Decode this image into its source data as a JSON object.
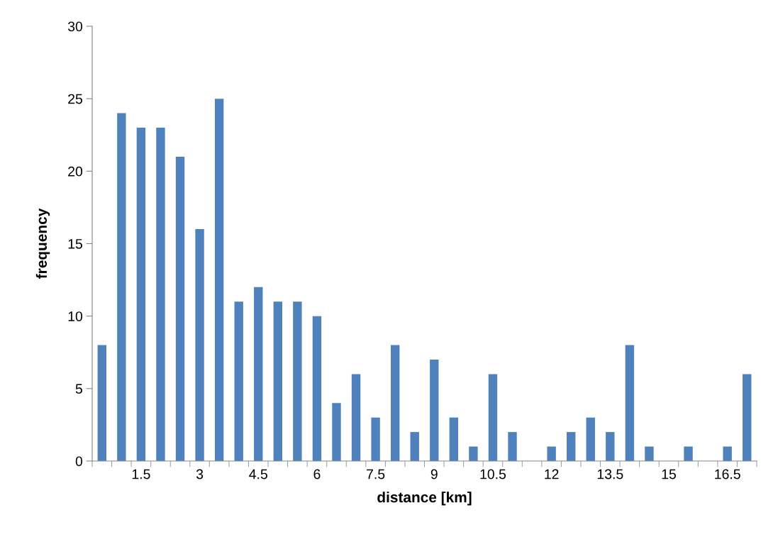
{
  "chart_data": {
    "type": "bar",
    "xlabel": "distance [km]",
    "ylabel": "frequency",
    "categories": [
      null,
      null,
      "1.5",
      null,
      null,
      "3",
      null,
      null,
      "4.5",
      null,
      null,
      "6",
      null,
      null,
      "7.5",
      null,
      null,
      "9",
      null,
      null,
      "10.5",
      null,
      null,
      "12",
      null,
      null,
      "13.5",
      null,
      null,
      "15",
      null,
      null,
      "16.5",
      null
    ],
    "values": [
      8,
      24,
      23,
      23,
      21,
      16,
      25,
      11,
      12,
      11,
      11,
      10,
      4,
      6,
      3,
      8,
      2,
      7,
      3,
      1,
      6,
      2,
      0,
      1,
      2,
      3,
      2,
      8,
      1,
      0,
      1,
      0,
      1,
      6
    ],
    "color": "#4f81bd",
    "ylim": [
      0,
      30
    ],
    "yticks": [
      0,
      5,
      10,
      15,
      20,
      25,
      30
    ],
    "grid": false
  }
}
